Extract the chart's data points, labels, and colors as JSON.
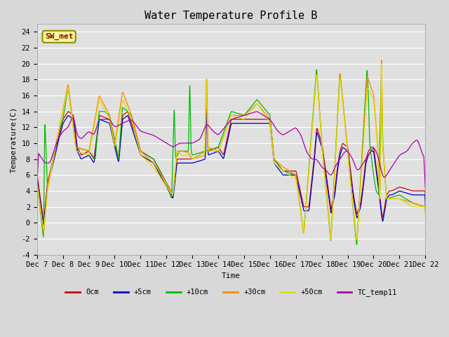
{
  "title": "Water Temperature Profile B",
  "xlabel": "Time",
  "ylabel": "Temperature(C)",
  "ylim": [
    -4,
    25
  ],
  "yticks": [
    -4,
    -2,
    0,
    2,
    4,
    6,
    8,
    10,
    12,
    14,
    16,
    18,
    20,
    22,
    24
  ],
  "xtick_labels": [
    "Dec 7",
    "Dec 8",
    "Dec 9",
    "Dec 10",
    "Dec 11",
    "Dec 12",
    "Dec 13",
    "Dec 14",
    "Dec 15",
    "Dec 16",
    "Dec 17",
    "Dec 18",
    "Dec 19",
    "Dec 20",
    "Dec 21",
    "Dec 22"
  ],
  "bg_color": "#d8d8d8",
  "plot_bg": "#e0e0e0",
  "series": {
    "0cm": {
      "color": "#cc0000",
      "lw": 1.0
    },
    "+5cm": {
      "color": "#0000cc",
      "lw": 1.0
    },
    "+10cm": {
      "color": "#00bb00",
      "lw": 1.0
    },
    "+30cm": {
      "color": "#ff8800",
      "lw": 1.0
    },
    "+50cm": {
      "color": "#dddd00",
      "lw": 1.0
    },
    "TC_temp11": {
      "color": "#aa00aa",
      "lw": 1.0
    }
  },
  "annotation": {
    "text": "SW_met",
    "fontsize": 8,
    "color": "#8B0000",
    "bg": "#ffff99",
    "border": "#8B8B00"
  },
  "font": "monospace",
  "title_fontsize": 11,
  "axis_fontsize": 8,
  "tick_fontsize": 7.5
}
